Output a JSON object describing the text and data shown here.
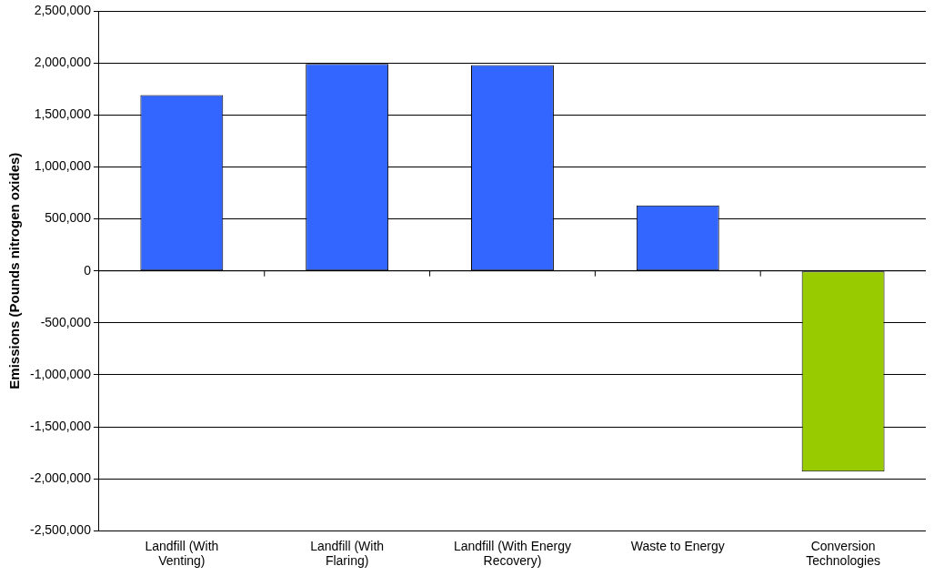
{
  "chart_data": {
    "type": "bar",
    "ylabel": "Emissions (Pounds nitrogen oxides)",
    "categories": [
      "Landfill (With Venting)",
      "Landfill (With Flaring)",
      "Landfill (With Energy Recovery)",
      "Waste to Energy",
      "Conversion Technologies"
    ],
    "values": [
      1690000,
      1990000,
      1980000,
      630000,
      -1930000
    ],
    "colors": [
      "#3366ff",
      "#3366ff",
      "#3366ff",
      "#3366ff",
      "#99cc00"
    ],
    "ylim": [
      -2500000,
      2500000
    ],
    "yticks": [
      {
        "value": -2500000,
        "label": "-2,500,000"
      },
      {
        "value": -2000000,
        "label": "-2,000,000"
      },
      {
        "value": -1500000,
        "label": "-1,500,000"
      },
      {
        "value": -1000000,
        "label": "-1,000,000"
      },
      {
        "value": -500000,
        "label": "-500,000"
      },
      0,
      {
        "value": 500000,
        "label": "500,000"
      },
      {
        "value": 1000000,
        "label": "1,000,000"
      },
      {
        "value": 1500000,
        "label": "1,500,000"
      },
      {
        "value": 2000000,
        "label": "2,000,000"
      },
      {
        "value": 2500000,
        "label": "2,500,000"
      }
    ],
    "grid": "y",
    "legend": false
  }
}
